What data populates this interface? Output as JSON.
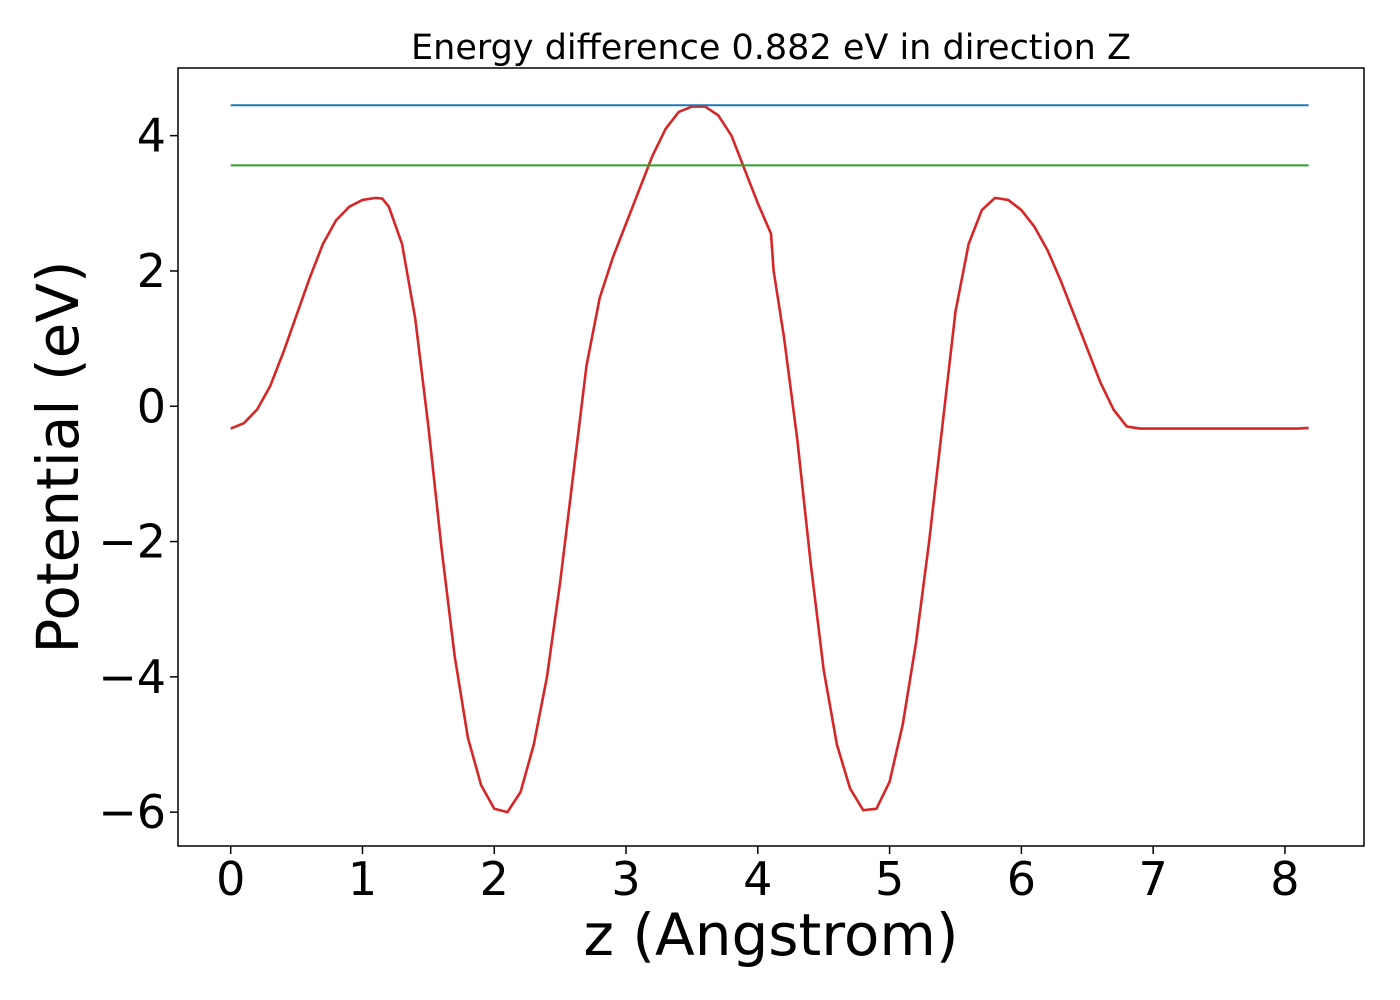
{
  "chart_data": {
    "type": "line",
    "title": "Energy difference 0.882 eV in direction Z",
    "xlabel": "z (Angstrom)",
    "ylabel": "Potential (eV)",
    "xlim": [
      -0.4,
      8.6
    ],
    "ylim": [
      -6.5,
      5.0
    ],
    "grid": false,
    "x_ticks": [
      0,
      1,
      2,
      3,
      4,
      5,
      6,
      7,
      8
    ],
    "x_tick_labels": [
      "0",
      "1",
      "2",
      "3",
      "4",
      "5",
      "6",
      "7",
      "8"
    ],
    "y_ticks": [
      -6,
      -4,
      -2,
      0,
      2,
      4
    ],
    "y_tick_labels": [
      "−6",
      "−4",
      "−2",
      "0",
      "2",
      "4"
    ],
    "series": [
      {
        "color": "#d62728",
        "x": [
          0.0,
          0.1,
          0.2,
          0.3,
          0.4,
          0.5,
          0.6,
          0.7,
          0.8,
          0.9,
          1.0,
          1.1,
          1.15,
          1.2,
          1.3,
          1.4,
          1.5,
          1.6,
          1.7,
          1.8,
          1.9,
          2.0,
          2.1,
          2.2,
          2.3,
          2.4,
          2.5,
          2.6,
          2.7,
          2.8,
          2.9,
          3.0,
          3.1,
          3.2,
          3.3,
          3.4,
          3.5,
          3.6,
          3.7,
          3.8,
          3.9,
          4.0,
          4.1,
          4.12,
          4.2,
          4.3,
          4.4,
          4.5,
          4.6,
          4.7,
          4.8,
          4.9,
          5.0,
          5.1,
          5.2,
          5.3,
          5.4,
          5.5,
          5.6,
          5.7,
          5.8,
          5.9,
          6.0,
          6.1,
          6.2,
          6.3,
          6.4,
          6.5,
          6.6,
          6.7,
          6.8,
          6.9,
          7.0,
          7.05,
          7.1,
          7.2,
          7.3,
          7.4,
          7.5,
          7.6,
          7.7,
          7.8,
          7.9,
          8.0,
          8.1,
          8.18
        ],
        "y": [
          -0.33,
          -0.25,
          -0.05,
          0.3,
          0.8,
          1.35,
          1.9,
          2.4,
          2.75,
          2.95,
          3.05,
          3.08,
          3.07,
          2.95,
          2.4,
          1.3,
          -0.3,
          -2.1,
          -3.7,
          -4.9,
          -5.6,
          -5.95,
          -6.0,
          -5.7,
          -5.0,
          -4.0,
          -2.6,
          -1.0,
          0.6,
          1.6,
          2.2,
          2.7,
          3.2,
          3.7,
          4.1,
          4.35,
          4.43,
          4.43,
          4.3,
          4.0,
          3.5,
          3.0,
          2.55,
          2.0,
          1.0,
          -0.5,
          -2.3,
          -3.9,
          -5.0,
          -5.65,
          -5.97,
          -5.95,
          -5.55,
          -4.7,
          -3.5,
          -2.0,
          -0.3,
          1.4,
          2.4,
          2.9,
          3.08,
          3.05,
          2.9,
          2.65,
          2.3,
          1.85,
          1.35,
          0.85,
          0.35,
          -0.05,
          -0.3,
          -0.33,
          -0.33,
          -0.33,
          -0.33,
          -0.33,
          -0.33,
          -0.33,
          -0.33,
          -0.33,
          -0.33,
          -0.33,
          -0.33,
          -0.33,
          -0.33,
          -0.32
        ]
      },
      {
        "color": "#1f77b4",
        "x": [
          0.0,
          8.18
        ],
        "y": [
          4.45,
          4.45
        ]
      },
      {
        "color": "#2ca02c",
        "x": [
          0.0,
          8.18
        ],
        "y": [
          3.56,
          3.56
        ]
      }
    ]
  }
}
